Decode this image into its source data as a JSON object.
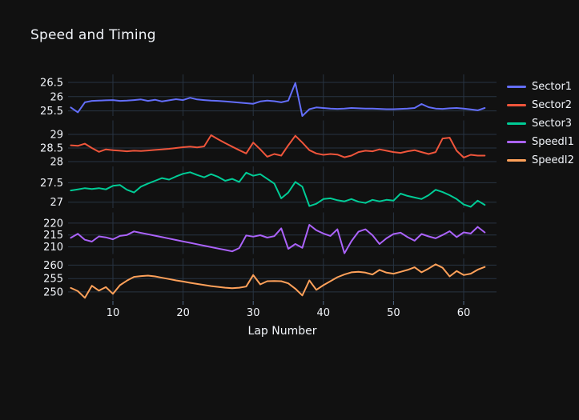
{
  "page": {
    "background": "#111111",
    "text_color": "#f2f5fa",
    "grid_color": "#283442",
    "tick_color": "#506784"
  },
  "header": {
    "title": "Speed and Timing"
  },
  "axes": {
    "x_label": "Lap Number",
    "x_tick_labels": [
      "10",
      "20",
      "30",
      "40",
      "50",
      "60"
    ]
  },
  "chart_data": {
    "type": "line",
    "title": "Speed and Timing",
    "xlabel": "Lap Number",
    "layout": "5 vertically stacked line subplots sharing the x-axis, dark theme, legend at right, grid on",
    "x_ticks": [
      10,
      20,
      30,
      40,
      50,
      60
    ],
    "x_range": [
      3,
      64.7
    ],
    "x": [
      4,
      5,
      6,
      7,
      8,
      9,
      10,
      11,
      12,
      13,
      14,
      15,
      16,
      17,
      18,
      19,
      20,
      21,
      22,
      23,
      24,
      25,
      26,
      27,
      28,
      29,
      30,
      31,
      32,
      33,
      34,
      35,
      36,
      37,
      38,
      39,
      40,
      41,
      42,
      43,
      44,
      45,
      46,
      47,
      48,
      49,
      50,
      51,
      52,
      53,
      54,
      55,
      56,
      57,
      58,
      59,
      60,
      61,
      62,
      63
    ],
    "series": [
      {
        "name": "Sector1",
        "color": "#636efa",
        "y_ticks": [
          25.5,
          26,
          26.5
        ],
        "y_tick_labels": [
          "25.5",
          "26",
          "26.5"
        ],
        "y_range": [
          25.32,
          26.78
        ],
        "values": [
          25.62,
          25.45,
          25.8,
          25.85,
          25.86,
          25.87,
          25.88,
          25.85,
          25.86,
          25.88,
          25.9,
          25.85,
          25.89,
          25.83,
          25.87,
          25.91,
          25.88,
          25.96,
          25.9,
          25.88,
          25.86,
          25.85,
          25.83,
          25.81,
          25.79,
          25.77,
          25.75,
          25.83,
          25.86,
          25.84,
          25.8,
          25.86,
          26.48,
          25.32,
          25.56,
          25.62,
          25.6,
          25.58,
          25.57,
          25.58,
          25.6,
          25.59,
          25.58,
          25.58,
          25.57,
          25.56,
          25.56,
          25.57,
          25.58,
          25.6,
          25.74,
          25.63,
          25.58,
          25.57,
          25.59,
          25.6,
          25.58,
          25.55,
          25.52,
          25.6
        ]
      },
      {
        "name": "Sector2",
        "color": "#ef553b",
        "y_ticks": [
          28,
          28.5,
          29
        ],
        "y_tick_labels": [
          "28",
          "28.5",
          "29"
        ],
        "y_range": [
          27.985,
          29.515
        ],
        "values": [
          28.6,
          28.58,
          28.66,
          28.5,
          28.36,
          28.45,
          28.42,
          28.4,
          28.38,
          28.4,
          28.39,
          28.41,
          28.43,
          28.45,
          28.47,
          28.5,
          28.53,
          28.55,
          28.52,
          28.56,
          28.97,
          28.82,
          28.68,
          28.55,
          28.42,
          28.3,
          28.7,
          28.45,
          28.18,
          28.28,
          28.22,
          28.6,
          28.95,
          28.7,
          28.42,
          28.3,
          28.25,
          28.28,
          28.26,
          28.16,
          28.22,
          28.35,
          28.4,
          28.38,
          28.45,
          28.4,
          28.35,
          28.32,
          28.38,
          28.42,
          28.35,
          28.28,
          28.35,
          28.85,
          28.88,
          28.4,
          28.15,
          28.25,
          28.22,
          28.22
        ]
      },
      {
        "name": "Sector3",
        "color": "#00cc96",
        "y_ticks": [
          27,
          27.5
        ],
        "y_tick_labels": [
          "27",
          "27.5"
        ],
        "y_range": [
          26.85,
          27.92
        ],
        "values": [
          27.3,
          27.33,
          27.36,
          27.34,
          27.36,
          27.33,
          27.42,
          27.44,
          27.32,
          27.25,
          27.4,
          27.48,
          27.55,
          27.62,
          27.58,
          27.66,
          27.73,
          27.77,
          27.7,
          27.64,
          27.72,
          27.65,
          27.55,
          27.6,
          27.52,
          27.76,
          27.68,
          27.72,
          27.6,
          27.48,
          27.1,
          27.25,
          27.52,
          27.4,
          26.9,
          26.96,
          27.08,
          27.1,
          27.05,
          27.02,
          27.08,
          27.01,
          26.98,
          27.06,
          27.02,
          27.06,
          27.04,
          27.22,
          27.16,
          27.12,
          27.08,
          27.18,
          27.32,
          27.26,
          27.18,
          27.08,
          26.94,
          26.88,
          27.04,
          26.93
        ]
      },
      {
        "name": "SpeedI1",
        "color": "#ab63fa",
        "y_ticks": [
          210,
          215,
          220
        ],
        "y_tick_labels": [
          "210",
          "215",
          "220"
        ],
        "y_range": [
          207,
          224.5
        ],
        "values": [
          213.8,
          215.5,
          213.0,
          212.2,
          214.4,
          214.0,
          213.2,
          214.6,
          215.0,
          216.5,
          215.9,
          215.3,
          214.7,
          214.1,
          213.5,
          212.9,
          212.3,
          211.7,
          211.1,
          210.5,
          209.9,
          209.3,
          208.7,
          208.1,
          209.5,
          214.8,
          214.3,
          214.9,
          213.9,
          214.5,
          217.8,
          209.2,
          211.2,
          209.6,
          219.3,
          217.0,
          215.6,
          214.6,
          217.4,
          207.3,
          212.4,
          216.4,
          217.4,
          214.9,
          211.2,
          213.6,
          215.4,
          216.0,
          214.1,
          212.6,
          215.4,
          214.4,
          213.6,
          215.0,
          216.6,
          214.1,
          216.1,
          215.6,
          218.4,
          216.1
        ]
      },
      {
        "name": "SpeedI2",
        "color": "#ffa15a",
        "y_ticks": [
          250,
          255,
          260
        ],
        "y_tick_labels": [
          "250",
          "255",
          "260"
        ],
        "y_range": [
          247,
          262.5
        ],
        "values": [
          251.5,
          250.3,
          247.8,
          252.3,
          250.5,
          251.8,
          249.3,
          252.5,
          254.2,
          255.6,
          255.9,
          256.1,
          255.8,
          255.3,
          254.8,
          254.3,
          253.9,
          253.4,
          253.0,
          252.6,
          252.2,
          251.9,
          251.6,
          251.4,
          251.6,
          252.0,
          256.3,
          252.8,
          254.0,
          254.1,
          254.0,
          253.2,
          251.2,
          248.7,
          254.3,
          250.8,
          252.5,
          254.0,
          255.5,
          256.5,
          257.3,
          257.5,
          257.2,
          256.5,
          258.2,
          257.2,
          256.8,
          257.5,
          258.2,
          259.2,
          257.3,
          258.7,
          260.3,
          259.0,
          255.8,
          257.8,
          256.3,
          256.8,
          258.3,
          259.3
        ]
      }
    ]
  }
}
